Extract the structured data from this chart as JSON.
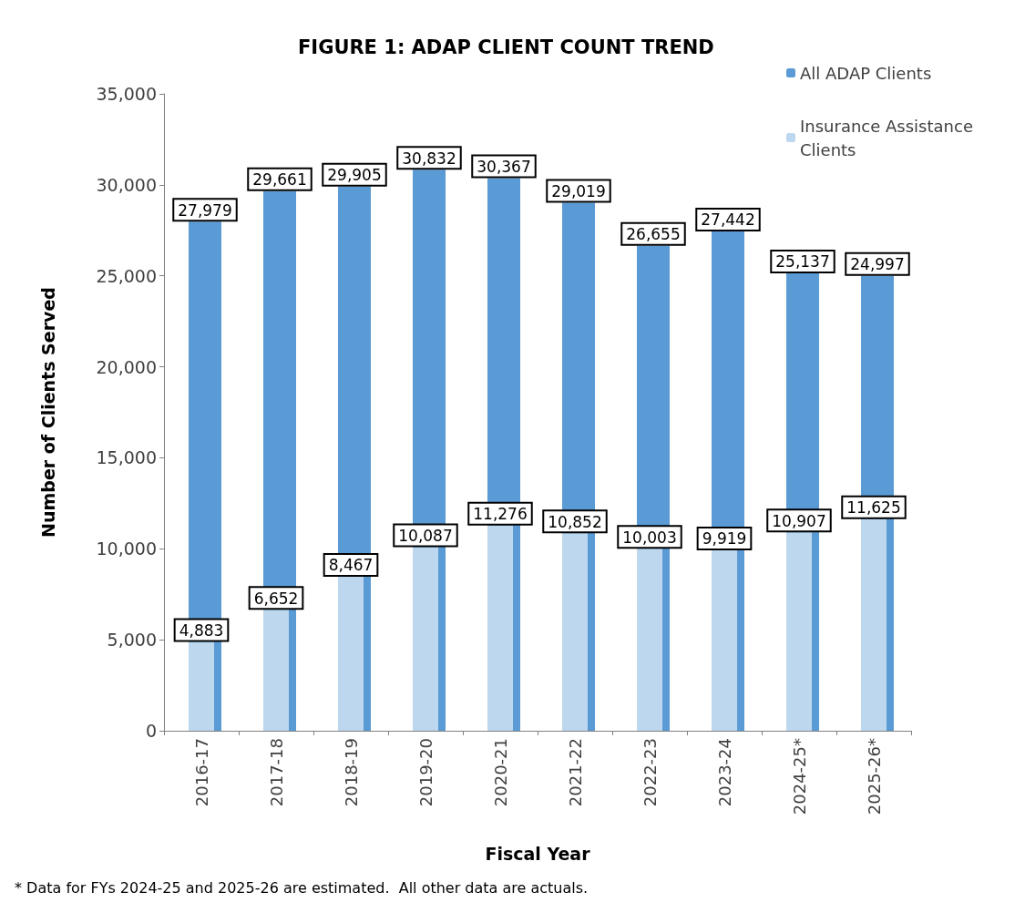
{
  "chart_data": {
    "type": "bar",
    "title": "FIGURE 1: ADAP CLIENT COUNT TREND",
    "xlabel": "Fiscal Year",
    "ylabel": "Number of Clients Served",
    "categories": [
      "2016-17",
      "2017-18",
      "2018-19",
      "2019-20",
      "2020-21",
      "2021-22",
      "2022-23",
      "2023-24",
      "2024-25*",
      "2025-26*"
    ],
    "series": [
      {
        "name": "All ADAP Clients",
        "color": "#5b9bd5",
        "values": [
          27979,
          29661,
          29905,
          30832,
          30367,
          29019,
          26655,
          27442,
          25137,
          24997
        ],
        "value_labels": [
          "27,979",
          "29,661",
          "29,905",
          "30,832",
          "30,367",
          "29,019",
          "26,655",
          "27,442",
          "25,137",
          "24,997"
        ]
      },
      {
        "name": "Insurance Assistance Clients",
        "color": "#bdd7ee",
        "values": [
          4883,
          6652,
          8467,
          10087,
          11276,
          10852,
          10003,
          9919,
          10907,
          11625
        ],
        "value_labels": [
          "4,883",
          "6,652",
          "8,467",
          "10,087",
          "11,276",
          "10,852",
          "10,003",
          "9,919",
          "10,907",
          "11,625"
        ]
      }
    ],
    "ylim": [
      0,
      35000
    ],
    "yticks": [
      0,
      {
        "value": 5000,
        "label": "5,000"
      },
      {
        "value": 10000,
        "label": "10,000"
      },
      {
        "value": 15000,
        "label": "15,000"
      },
      {
        "value": 20000,
        "label": "20,000"
      },
      {
        "value": 25000,
        "label": "25,000"
      },
      {
        "value": 30000,
        "label": "30,000"
      },
      {
        "value": 35000,
        "label": "35,000"
      }
    ],
    "legend": "top right",
    "annotations": [
      "* Data for FYs 2024-25 and 2025-26 are estimated.  All other data are actuals."
    ]
  }
}
